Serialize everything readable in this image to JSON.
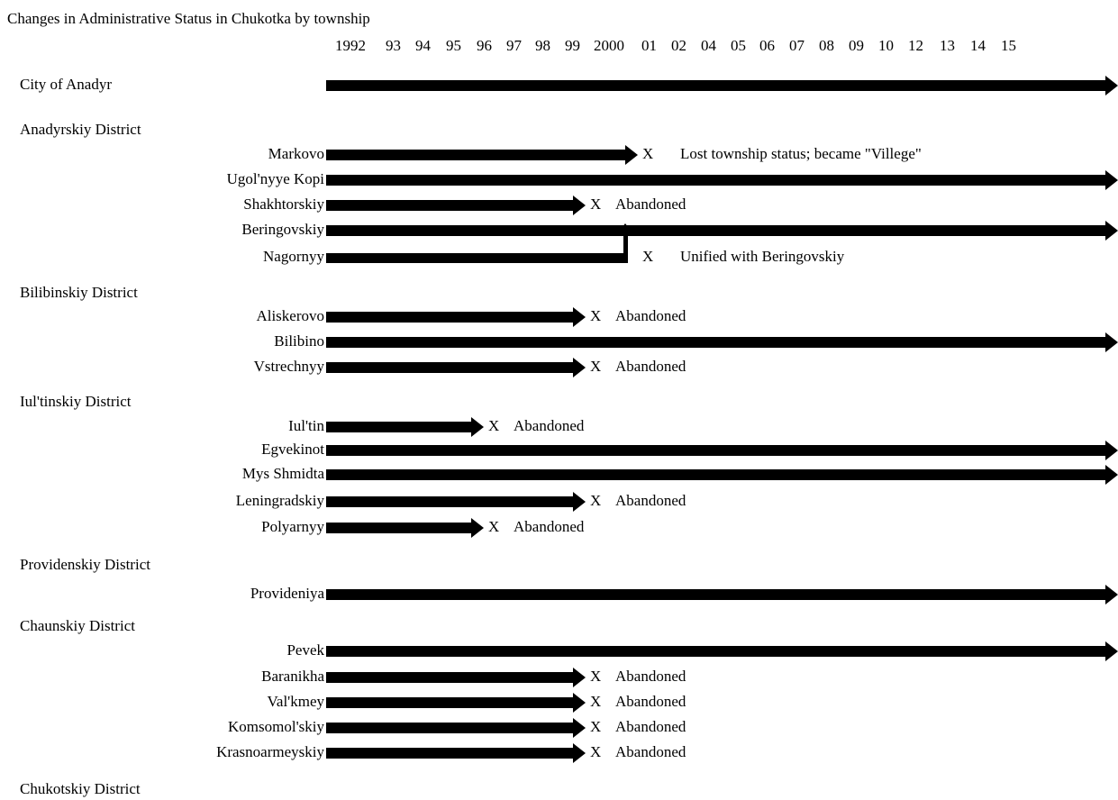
{
  "header": {
    "title": "Changes in Administrative Status in Chukotka by township"
  },
  "years": [
    "1992",
    "93",
    "94",
    "95",
    "96",
    "97",
    "98",
    "99",
    "2000",
    "01",
    "02",
    "04",
    "05",
    "06",
    "07",
    "08",
    "09",
    "10",
    "12",
    "13",
    "14",
    "15"
  ],
  "groups": [
    {
      "name": "City of Anadyr",
      "rows": []
    },
    {
      "name": "Anadyrskiy District",
      "rows": [
        {
          "name": "Markovo",
          "marker": "X",
          "note": "Lost township status; became \"Villege\""
        },
        {
          "name": "Ugol'nyye Kopi"
        },
        {
          "name": "Shakhtorskiy",
          "marker": "X",
          "note": "Abandoned"
        },
        {
          "name": "Beringovskiy"
        },
        {
          "name": "Nagornyy",
          "marker": "X",
          "note": "Unified with Beringovskiy"
        }
      ]
    },
    {
      "name": "Bilibinskiy District",
      "rows": [
        {
          "name": "Aliskerovo",
          "marker": "X",
          "note": "Abandoned"
        },
        {
          "name": "Bilibino"
        },
        {
          "name": "Vstrechnyy",
          "marker": "X",
          "note": "Abandoned"
        }
      ]
    },
    {
      "name": "Iul'tinskiy District",
      "rows": [
        {
          "name": "Iul'tin",
          "marker": "X",
          "note": "Abandoned"
        },
        {
          "name": "Egvekinot"
        },
        {
          "name": "Mys Shmidta"
        },
        {
          "name": "Leningradskiy",
          "marker": "X",
          "note": "Abandoned"
        },
        {
          "name": "Polyarnyy",
          "marker": "X",
          "note": "Abandoned"
        }
      ]
    },
    {
      "name": "Providenskiy District",
      "rows": [
        {
          "name": "Provideniya"
        }
      ]
    },
    {
      "name": "Chaunskiy District",
      "rows": [
        {
          "name": "Pevek"
        },
        {
          "name": "Baranikha",
          "marker": "X",
          "note": "Abandoned"
        },
        {
          "name": "Val'kmey",
          "marker": "X",
          "note": "Abandoned"
        },
        {
          "name": "Komsomol'skiy",
          "marker": "X",
          "note": "Abandoned"
        },
        {
          "name": "Krasnoarmeyskiy",
          "marker": "X",
          "note": "Abandoned"
        }
      ]
    },
    {
      "name": "Chukotskiy District",
      "rows": []
    }
  ]
}
